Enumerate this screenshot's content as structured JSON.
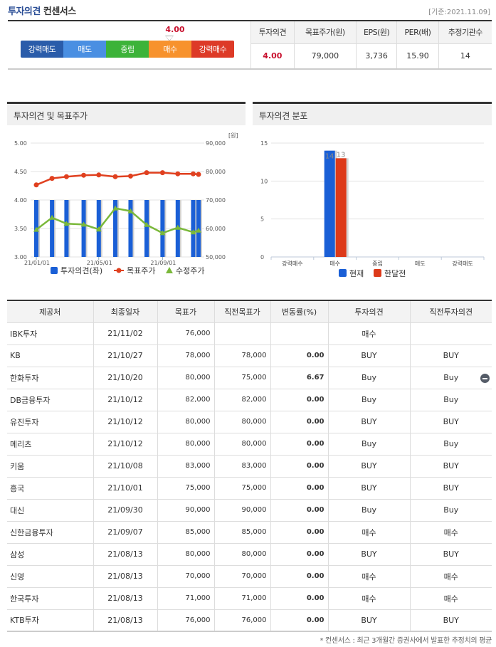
{
  "header": {
    "title_main": "투자의견",
    "title_sub": "컨센서스",
    "base_date": "[기준:2021.11.09]"
  },
  "gauge": {
    "score": "4.00",
    "segments": [
      {
        "label": "강력매도",
        "color": "#2a5caa"
      },
      {
        "label": "매도",
        "color": "#4a8fe2"
      },
      {
        "label": "중립",
        "color": "#3cb339"
      },
      {
        "label": "매수",
        "color": "#f7922d"
      },
      {
        "label": "강력매수",
        "color": "#dd3a27"
      }
    ]
  },
  "summary": {
    "headers": [
      "투자의견",
      "목표주가(원)",
      "EPS(원)",
      "PER(배)",
      "추정기관수"
    ],
    "values": [
      "4.00",
      "79,000",
      "3,736",
      "15.90",
      "14"
    ]
  },
  "panels": {
    "left_title": "투자의견 및 목표주가",
    "right_title": "투자의견 분포"
  },
  "chart_data": [
    {
      "type": "bar+line",
      "title": "투자의견 및 목표주가",
      "x_ticks": [
        "21/01/01",
        "21/05/01",
        "21/09/01"
      ],
      "y_left": {
        "ticks": [
          "5.00",
          "4.50",
          "4.00",
          "3.50",
          "3.00"
        ],
        "range": [
          3.0,
          5.0
        ]
      },
      "y_right": {
        "unit": "[원]",
        "ticks": [
          "90,000",
          "80,000",
          "70,000",
          "60,000",
          "50,000"
        ],
        "range": [
          50000,
          90000
        ]
      },
      "legend": [
        "투자의견(좌)",
        "목표주가",
        "수정주가"
      ],
      "x_positions": [
        0,
        0.097,
        0.186,
        0.292,
        0.385,
        0.487,
        0.581,
        0.68,
        0.778,
        0.872,
        0.967,
        1.0
      ],
      "series": [
        {
          "name": "투자의견(좌)",
          "type": "bar",
          "color": "#1a5fd6",
          "values": [
            4.0,
            4.0,
            4.0,
            4.0,
            4.0,
            4.0,
            4.0,
            4.0,
            4.0,
            4.0,
            4.0,
            4.0
          ]
        },
        {
          "name": "목표주가",
          "type": "line",
          "color": "#e0401f",
          "values": [
            75300,
            77600,
            78200,
            78700,
            78800,
            78200,
            78400,
            79600,
            79600,
            79200,
            79200,
            79000
          ]
        },
        {
          "name": "수정주가",
          "type": "line",
          "color": "#7ab83a",
          "values": [
            59600,
            63800,
            61700,
            61400,
            59700,
            67100,
            66100,
            61300,
            58400,
            60300,
            58700,
            59300
          ]
        }
      ]
    },
    {
      "type": "bar",
      "title": "투자의견 분포",
      "categories": [
        "강력매수",
        "매수",
        "중립",
        "매도",
        "강력매도"
      ],
      "y_ticks": [
        "15",
        "10",
        "5",
        "0"
      ],
      "ylim": [
        0,
        15
      ],
      "legend": [
        "현재",
        "한달전"
      ],
      "series": [
        {
          "name": "현재",
          "color": "#1a5fd6",
          "values": [
            0,
            14,
            0,
            0,
            0
          ]
        },
        {
          "name": "한달전",
          "color": "#dd3a1a",
          "values": [
            0,
            13,
            0,
            0,
            0
          ]
        }
      ],
      "data_labels": {
        "현재": "14",
        "한달전": "13"
      }
    }
  ],
  "table": {
    "headers": [
      "제공처",
      "최종일자",
      "목표가",
      "직전목표가",
      "변동률(%)",
      "투자의견",
      "직전투자의견"
    ],
    "rows": [
      [
        "IBK투자",
        "21/11/02",
        "76,000",
        "",
        "",
        "매수",
        ""
      ],
      [
        "KB",
        "21/10/27",
        "78,000",
        "78,000",
        "0.00",
        "BUY",
        "BUY"
      ],
      [
        "한화투자",
        "21/10/20",
        "80,000",
        "75,000",
        "6.67",
        "Buy",
        "Buy"
      ],
      [
        "DB금융투자",
        "21/10/12",
        "82,000",
        "82,000",
        "0.00",
        "Buy",
        "Buy"
      ],
      [
        "유진투자",
        "21/10/12",
        "80,000",
        "80,000",
        "0.00",
        "BUY",
        "BUY"
      ],
      [
        "메리츠",
        "21/10/12",
        "80,000",
        "80,000",
        "0.00",
        "Buy",
        "Buy"
      ],
      [
        "키움",
        "21/10/08",
        "83,000",
        "83,000",
        "0.00",
        "BUY",
        "BUY"
      ],
      [
        "흥국",
        "21/10/01",
        "75,000",
        "75,000",
        "0.00",
        "BUY",
        "BUY"
      ],
      [
        "대신",
        "21/09/30",
        "90,000",
        "90,000",
        "0.00",
        "Buy",
        "Buy"
      ],
      [
        "신한금융투자",
        "21/09/07",
        "85,000",
        "85,000",
        "0.00",
        "매수",
        "매수"
      ],
      [
        "삼성",
        "21/08/13",
        "80,000",
        "80,000",
        "0.00",
        "BUY",
        "BUY"
      ],
      [
        "신영",
        "21/08/13",
        "70,000",
        "70,000",
        "0.00",
        "매수",
        "매수"
      ],
      [
        "한국투자",
        "21/08/13",
        "71,000",
        "71,000",
        "0.00",
        "매수",
        "매수"
      ],
      [
        "KTB투자",
        "21/08/13",
        "76,000",
        "76,000",
        "0.00",
        "BUY",
        "BUY"
      ]
    ],
    "row_icon": {
      "row": 2,
      "icon": "minus-circle-icon"
    }
  },
  "footnote": "* 컨센서스 : 최근 3개월간 증권사에서 발표한 추정치의 평균"
}
